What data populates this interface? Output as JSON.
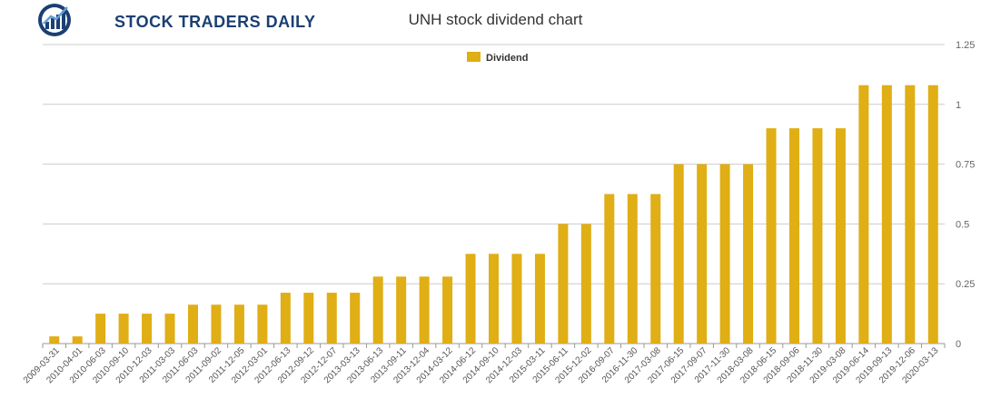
{
  "brand": {
    "name": "STOCK TRADERS DAILY",
    "color": "#1b3f73"
  },
  "chart_data": {
    "type": "bar",
    "title": "UNH stock dividend chart",
    "xlabel": "",
    "ylabel": "",
    "ylim": [
      0,
      1.25
    ],
    "yticks": [
      0,
      0.25,
      0.5,
      0.75,
      1,
      1.25
    ],
    "ytick_labels": [
      "0",
      "0.25",
      "0.5",
      "0.75",
      "1",
      "1.25"
    ],
    "grid": true,
    "legend_position": "top-center",
    "bar_color": "#e0ae15",
    "categories": [
      "2009-03-31",
      "2010-04-01",
      "2010-06-03",
      "2010-09-10",
      "2010-12-03",
      "2011-03-03",
      "2011-06-03",
      "2011-09-02",
      "2011-12-05",
      "2012-03-01",
      "2012-06-13",
      "2012-09-12",
      "2012-12-07",
      "2013-03-13",
      "2013-06-13",
      "2013-09-11",
      "2013-12-04",
      "2014-03-12",
      "2014-06-12",
      "2014-09-10",
      "2014-12-03",
      "2015-03-11",
      "2015-06-11",
      "2015-12-02",
      "2016-09-07",
      "2016-11-30",
      "2017-03-08",
      "2017-06-15",
      "2017-09-07",
      "2017-11-30",
      "2018-03-08",
      "2018-06-15",
      "2018-09-06",
      "2018-11-30",
      "2019-03-08",
      "2019-06-14",
      "2019-09-13",
      "2019-12-06",
      "2020-03-13"
    ],
    "series": [
      {
        "name": "Dividend",
        "values": [
          0.03,
          0.03,
          0.125,
          0.125,
          0.125,
          0.125,
          0.1625,
          0.1625,
          0.1625,
          0.1625,
          0.2125,
          0.2125,
          0.2125,
          0.2125,
          0.28,
          0.28,
          0.28,
          0.28,
          0.375,
          0.375,
          0.375,
          0.375,
          0.5,
          0.5,
          0.625,
          0.625,
          0.625,
          0.75,
          0.75,
          0.75,
          0.75,
          0.9,
          0.9,
          0.9,
          0.9,
          1.08,
          1.08,
          1.08,
          1.08
        ]
      }
    ]
  }
}
